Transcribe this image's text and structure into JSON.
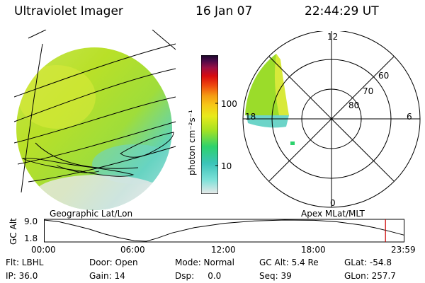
{
  "header": {
    "instrument": "Ultraviolet Imager",
    "date": "16 Jan 07",
    "time": "22:44:29 UT"
  },
  "geo_panel": {
    "caption": "Geographic Lat/Lon",
    "colors": {
      "map_lines": "#000000",
      "low_emission": "#dcdcdc",
      "cyan": "#5dd3c8",
      "green": "#b8e020",
      "yellowgreen": "#d8e93a"
    }
  },
  "colorbar": {
    "unit_label": "photon cm⁻²s⁻¹",
    "ticks": [
      "100",
      "10"
    ],
    "scale": "log",
    "colors": [
      "#e8e8e8",
      "#7de1d8",
      "#3bc4b9",
      "#2dd26d",
      "#a6e222",
      "#e8ea1a",
      "#f7c817",
      "#f59a12",
      "#ef4a0e",
      "#d80b0f",
      "#991045",
      "#4c0a48",
      "#190829"
    ]
  },
  "polar_panel": {
    "caption": "Apex MLat/MLT",
    "mlt_labels": {
      "top": "12",
      "left": "18",
      "right": "6",
      "bottom": "0"
    },
    "lat_labels": [
      "60",
      "70",
      "80"
    ],
    "colors": {
      "green": "#9bdc2a",
      "yellow": "#d8e93a",
      "cyan": "#6cd4c8"
    }
  },
  "timeline": {
    "axis_label": "GC Alt",
    "y_ticks": [
      "9.0",
      "1.8"
    ],
    "x_ticks": [
      "00:00",
      "06:00",
      "12:00",
      "18:00",
      "23:59"
    ],
    "marker_color": "#cc0000"
  },
  "chart_data": {
    "type": "line",
    "title": "GC Alt",
    "xlabel": "",
    "ylabel": "GC Alt",
    "x_unit": "UT hours",
    "ylim": [
      1.8,
      9.0
    ],
    "series": [
      {
        "x": [
          0,
          1,
          2,
          3,
          4,
          5,
          6,
          6.8,
          7.5,
          8.5,
          10,
          12,
          14,
          16,
          18,
          19.5,
          21,
          22,
          23,
          23.98
        ],
        "values": [
          9.0,
          8.4,
          7.2,
          5.9,
          4.3,
          3.0,
          2.0,
          1.8,
          2.8,
          4.6,
          6.4,
          7.9,
          8.7,
          9.0,
          8.9,
          8.4,
          7.4,
          6.4,
          5.2,
          3.9
        ]
      }
    ],
    "current_time_hours": 22.74
  },
  "status": {
    "row1": [
      "Flt: LBHL",
      "Door: Open",
      "Mode: Normal",
      "GC Alt: 5.4 Re",
      "GLat: -54.8"
    ],
    "row2": [
      "IP: 36.0",
      "Gain: 14",
      "Dsp:     0.0",
      "Seq: 39",
      "GLon: 257.7"
    ]
  }
}
